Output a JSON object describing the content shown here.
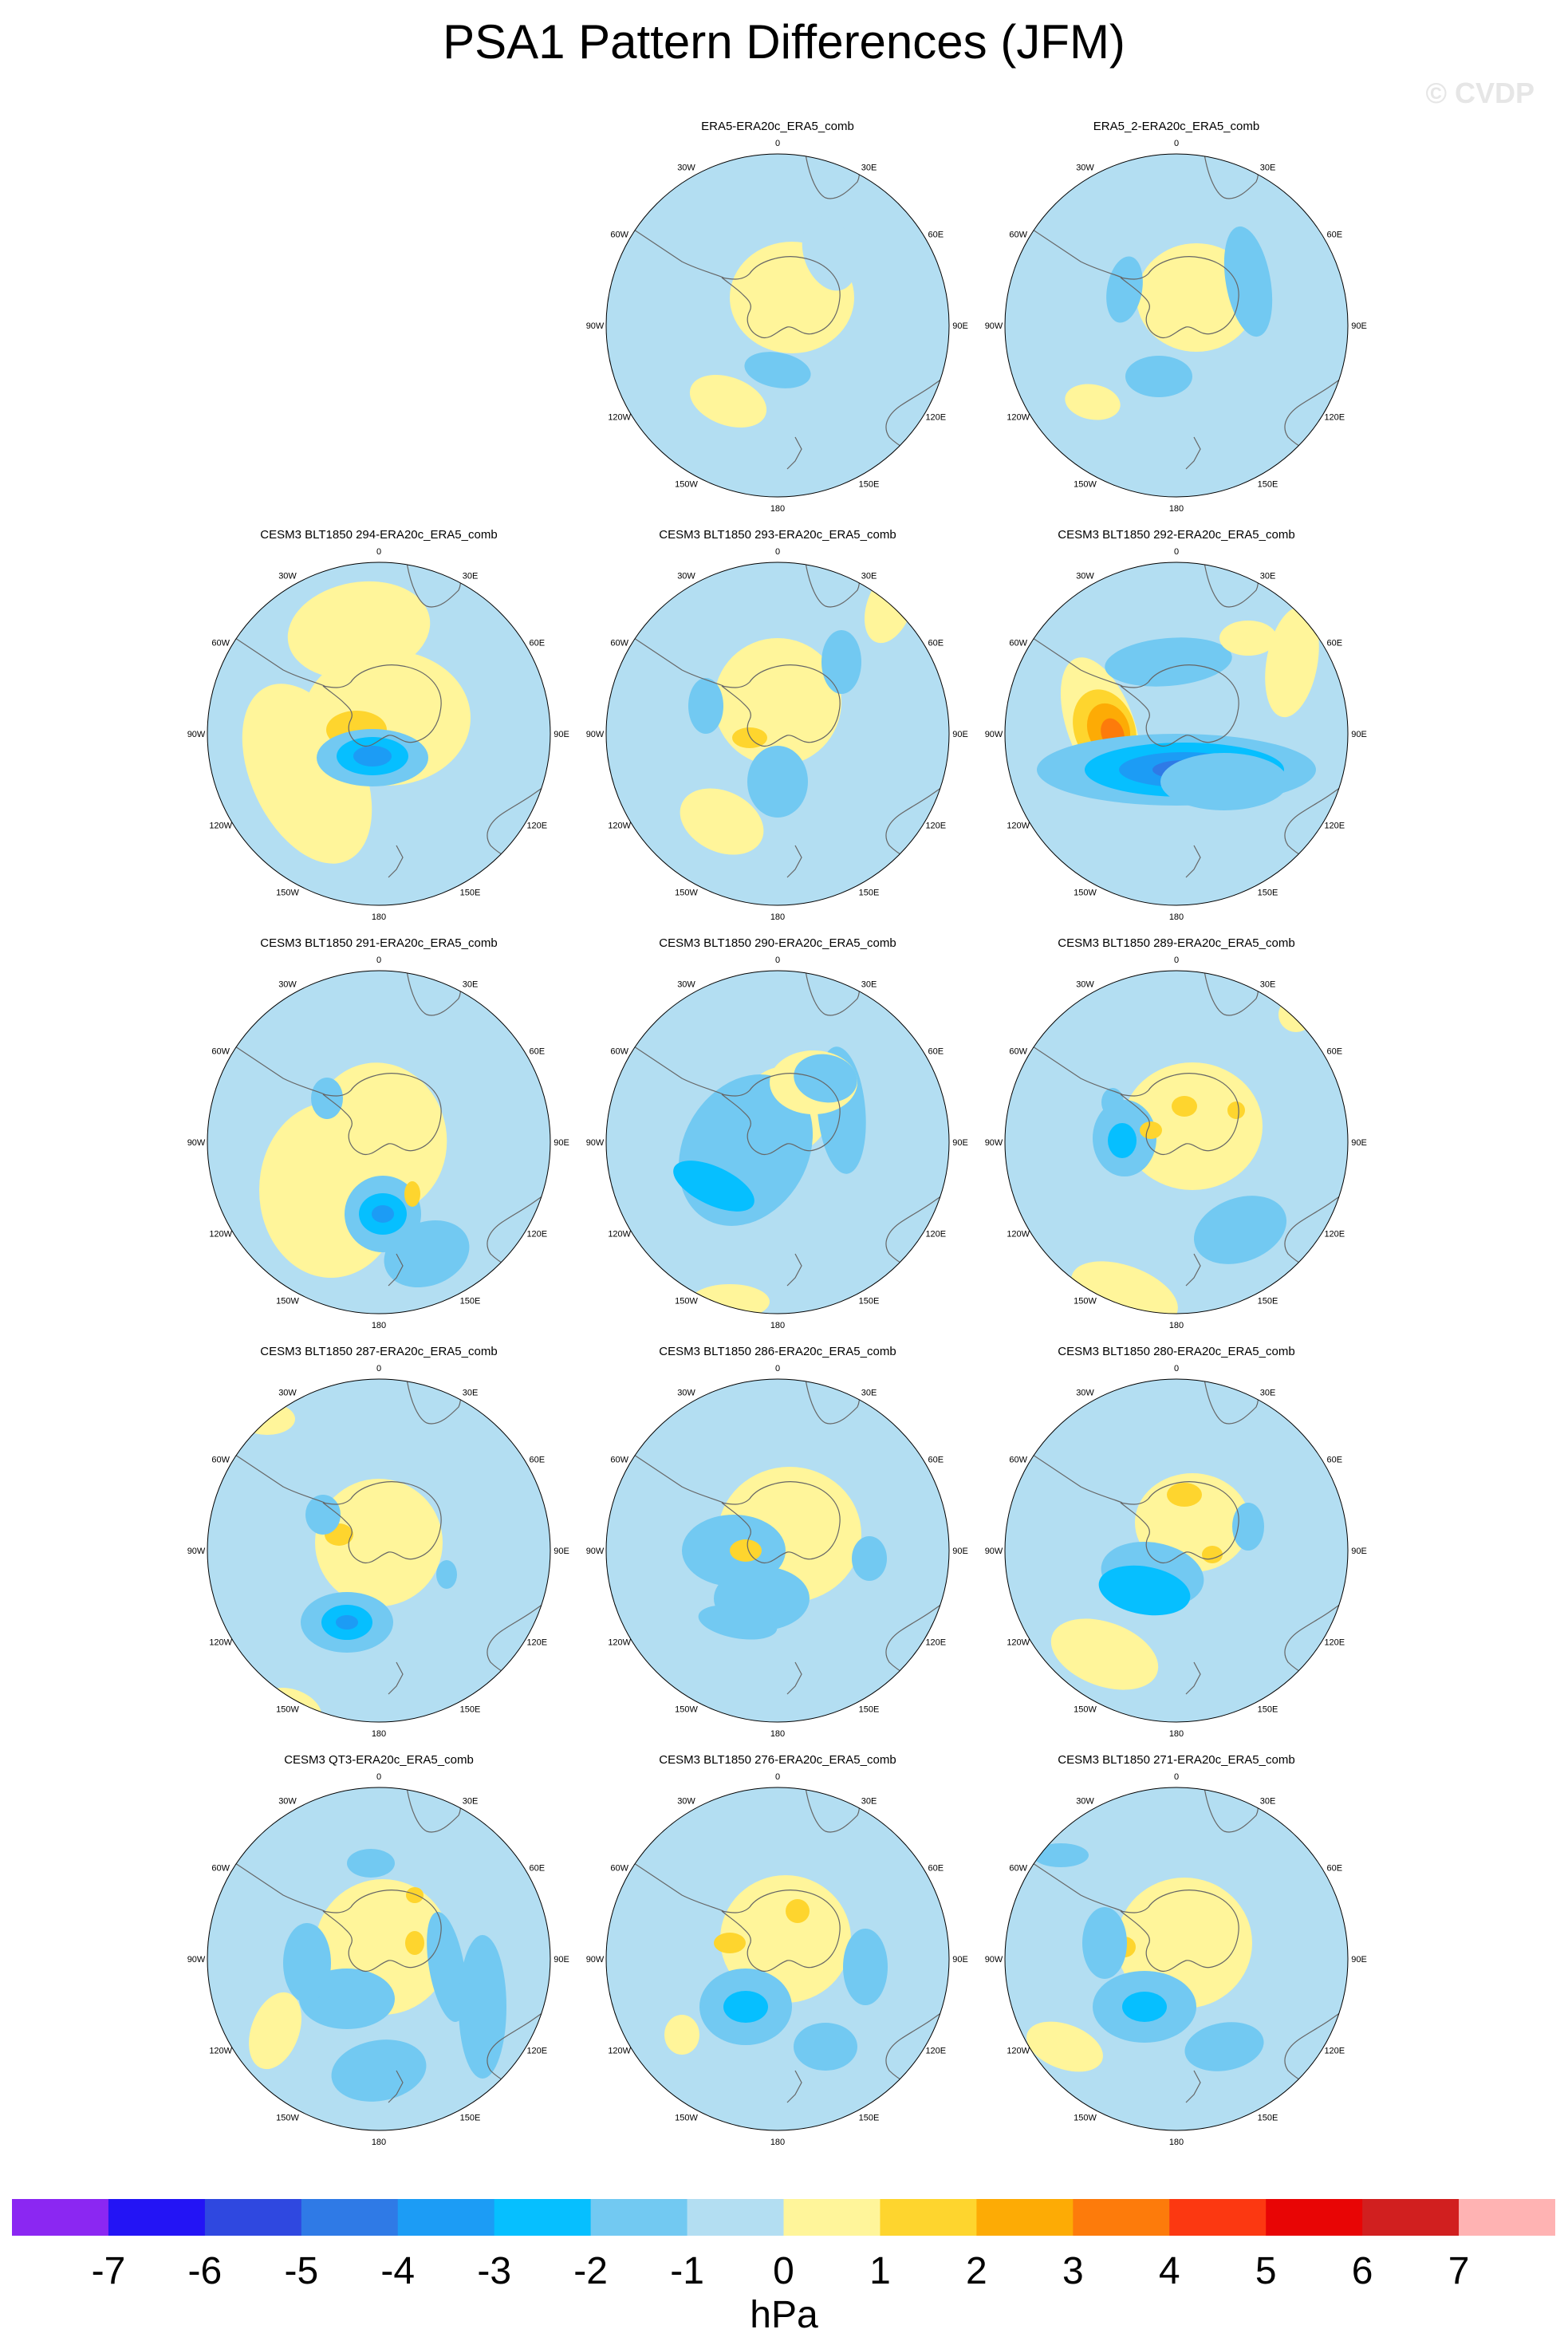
{
  "title": "PSA1 Pattern Differences (JFM)",
  "watermark": "© CVDP",
  "colors": {
    "ocean_bg": "#b3def2",
    "levels": [
      "#8b27f2",
      "#2314f5",
      "#2f48e0",
      "#2f7ae6",
      "#1c9cf5",
      "#06bfff",
      "#72c9f2",
      "#b3def2",
      "#fff59a",
      "#fed52e",
      "#fdab05",
      "#fd7b0b",
      "#fc3811",
      "#e80505",
      "#d11f1f",
      "#ffb3b3"
    ]
  },
  "lon_labels": [
    "0",
    "30E",
    "60E",
    "90E",
    "120E",
    "150E",
    "180",
    "150W",
    "120W",
    "90W",
    "60W",
    "30W"
  ],
  "colorbar": {
    "ticks": [
      "-7",
      "-6",
      "-5",
      "-4",
      "-3",
      "-2",
      "-1",
      "0",
      "1",
      "2",
      "3",
      "4",
      "5",
      "6",
      "7"
    ],
    "units": "hPa"
  },
  "panels": [
    {
      "title": "ERA5-ERA20c_ERA5_comb"
    },
    {
      "title": "ERA5_2-ERA20c_ERA5_comb"
    },
    {
      "title": "CESM3 BLT1850 294-ERA20c_ERA5_comb"
    },
    {
      "title": "CESM3 BLT1850 293-ERA20c_ERA5_comb"
    },
    {
      "title": "CESM3 BLT1850 292-ERA20c_ERA5_comb"
    },
    {
      "title": "CESM3 BLT1850 291-ERA20c_ERA5_comb"
    },
    {
      "title": "CESM3 BLT1850 290-ERA20c_ERA5_comb"
    },
    {
      "title": "CESM3 BLT1850 289-ERA20c_ERA5_comb"
    },
    {
      "title": "CESM3 BLT1850 287-ERA20c_ERA5_comb"
    },
    {
      "title": "CESM3 BLT1850 286-ERA20c_ERA5_comb"
    },
    {
      "title": "CESM3 BLT1850 280-ERA20c_ERA5_comb"
    },
    {
      "title": "CESM3 QT3-ERA20c_ERA5_comb"
    },
    {
      "title": "CESM3 BLT1850 276-ERA20c_ERA5_comb"
    },
    {
      "title": "CESM3 BLT1850 271-ERA20c_ERA5_comb"
    }
  ]
}
